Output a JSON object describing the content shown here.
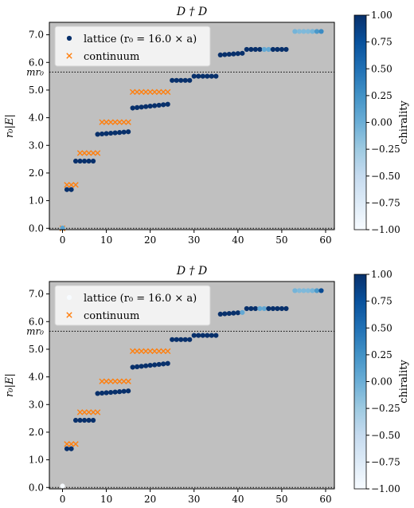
{
  "chart_data": [
    {
      "type": "scatter",
      "title": "D † D",
      "ylabel": "r₀|E|",
      "hline_label": "mr₀",
      "hlines": [
        0.0,
        5.65
      ],
      "xlim": [
        -3,
        62
      ],
      "ylim": [
        -0.05,
        7.45
      ],
      "x_ticks": [
        "0",
        "10",
        "20",
        "30",
        "40",
        "50",
        "60"
      ],
      "y_ticks": [
        "0.0",
        "1.0",
        "2.0",
        "3.0",
        "4.0",
        "5.0",
        "6.0",
        "7.0"
      ],
      "legend": {
        "position": "top-left",
        "lattice": "lattice (r₀ = 16.0 × a)",
        "continuum": "continuum"
      },
      "colorbar": {
        "label": "chirality",
        "range": [
          -1.0,
          1.0
        ],
        "ticks": [
          "1.00",
          "0.75",
          "0.50",
          "0.25",
          "0.00",
          "−0.25",
          "−0.50",
          "−0.75",
          "−1.00"
        ]
      },
      "grid": false,
      "lattice": [
        {
          "x_start": 0,
          "x_end": 0,
          "y": 0.01,
          "chirality": 0.1
        },
        {
          "x_start": 1,
          "x_end": 2,
          "y": 1.4,
          "chirality": 1.0
        },
        {
          "x_start": 3,
          "x_end": 7,
          "y": 2.43,
          "chirality": 1.0
        },
        {
          "x_start": 8,
          "x_end": 15,
          "y": 3.4,
          "chirality": 1.0,
          "y_step": 0.013
        },
        {
          "x_start": 16,
          "x_end": 24,
          "y": 4.35,
          "chirality": 1.0,
          "y_step": 0.017
        },
        {
          "x_start": 25,
          "x_end": 29,
          "y": 5.35,
          "chirality": 1.0
        },
        {
          "x_start": 30,
          "x_end": 35,
          "y": 5.5,
          "chirality": 1.0
        },
        {
          "x_start": 36,
          "x_end": 41,
          "y": 6.27,
          "chirality": 1.0,
          "y_step": 0.012
        },
        {
          "x_start": 42,
          "x_end": 51,
          "y": 6.47,
          "chirality": 1.0,
          "light": [
            46,
            47
          ]
        },
        {
          "x_start": 53,
          "x_end": 59,
          "y": 7.12,
          "chirality": -0.1,
          "colors": [
            -0.05,
            -0.1,
            -0.1,
            -0.1,
            -0.05,
            0.2,
            0.3
          ]
        }
      ],
      "continuum": [
        {
          "x_start": 0,
          "x_end": 0,
          "y": 0.0
        },
        {
          "x_start": 1,
          "x_end": 3,
          "y": 1.57
        },
        {
          "x_start": 4,
          "x_end": 8,
          "y": 2.72
        },
        {
          "x_start": 9,
          "x_end": 15,
          "y": 3.84
        },
        {
          "x_start": 16,
          "x_end": 24,
          "y": 4.93
        }
      ]
    },
    {
      "type": "scatter",
      "title": "D † D",
      "ylabel": "r₀|E|",
      "hline_label": "mr₀",
      "hlines": [
        0.0,
        5.65
      ],
      "xlim": [
        -3,
        62
      ],
      "ylim": [
        -0.05,
        7.45
      ],
      "x_ticks": [
        "0",
        "10",
        "20",
        "30",
        "40",
        "50",
        "60"
      ],
      "y_ticks": [
        "0.0",
        "1.0",
        "2.0",
        "3.0",
        "4.0",
        "5.0",
        "6.0",
        "7.0"
      ],
      "legend": {
        "position": "top-left",
        "lattice": "lattice (r₀ = 16.0 × a)",
        "continuum": "continuum"
      },
      "colorbar": {
        "label": "chirality",
        "range": [
          -1.0,
          1.0
        ],
        "ticks": [
          "1.00",
          "0.75",
          "0.50",
          "0.25",
          "0.00",
          "−0.25",
          "−0.50",
          "−0.75",
          "−1.00"
        ]
      },
      "grid": false,
      "lattice": [
        {
          "x_start": 0,
          "x_end": 0,
          "y": 0.05,
          "chirality": -1.0
        },
        {
          "x_start": 1,
          "x_end": 2,
          "y": 1.4,
          "chirality": 1.0
        },
        {
          "x_start": 3,
          "x_end": 7,
          "y": 2.43,
          "chirality": 1.0
        },
        {
          "x_start": 8,
          "x_end": 15,
          "y": 3.4,
          "chirality": 1.0,
          "y_step": 0.013
        },
        {
          "x_start": 16,
          "x_end": 24,
          "y": 4.35,
          "chirality": 1.0,
          "y_step": 0.017
        },
        {
          "x_start": 25,
          "x_end": 29,
          "y": 5.35,
          "chirality": 1.0
        },
        {
          "x_start": 30,
          "x_end": 35,
          "y": 5.5,
          "chirality": 1.0
        },
        {
          "x_start": 36,
          "x_end": 41,
          "y": 6.27,
          "chirality": 1.0,
          "y_step": 0.012,
          "light": [
            41
          ]
        },
        {
          "x_start": 42,
          "x_end": 51,
          "y": 6.47,
          "chirality": 1.0,
          "light": [
            45,
            46
          ]
        },
        {
          "x_start": 53,
          "x_end": 59,
          "y": 7.12,
          "chirality": -0.1,
          "colors": [
            -0.05,
            -0.1,
            -0.1,
            -0.1,
            -0.05,
            0.2,
            0.8
          ]
        }
      ],
      "continuum": [
        {
          "x_start": 1,
          "x_end": 3,
          "y": 1.57
        },
        {
          "x_start": 4,
          "x_end": 8,
          "y": 2.72
        },
        {
          "x_start": 9,
          "x_end": 15,
          "y": 3.84
        },
        {
          "x_start": 16,
          "x_end": 24,
          "y": 4.93
        }
      ]
    }
  ]
}
